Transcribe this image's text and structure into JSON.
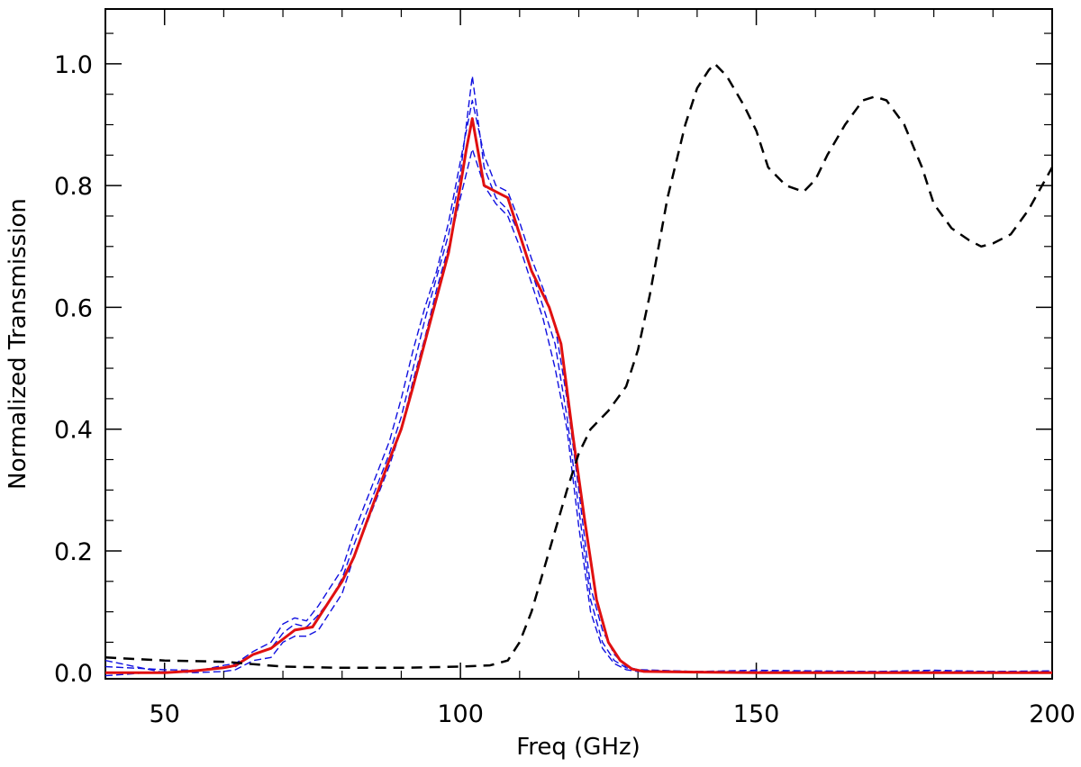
{
  "chart_data": {
    "type": "line",
    "title": "",
    "xlabel": "Freq (GHz)",
    "ylabel": "Normalized Transmission",
    "xlim": [
      40,
      200
    ],
    "ylim": [
      -0.01,
      1.09
    ],
    "xticks": [
      50,
      100,
      150,
      200
    ],
    "xtick_labels": [
      "50",
      "100",
      "150",
      "200"
    ],
    "yticks": [
      0.0,
      0.2,
      0.4,
      0.6,
      0.8,
      1.0
    ],
    "ytick_labels": [
      "0.0",
      "0.2",
      "0.4",
      "0.6",
      "0.8",
      "1.0"
    ],
    "grid": false,
    "legend": "none",
    "series": [
      {
        "color": "#1010e0",
        "style": "dashed",
        "description_role": "individual-detector",
        "x": [
          40,
          50,
          55,
          60,
          62,
          65,
          68,
          70,
          72,
          74,
          76,
          78,
          80,
          82,
          84,
          86,
          88,
          90,
          92,
          94,
          96,
          98,
          100,
          102,
          104,
          106,
          108,
          110,
          112,
          114,
          116,
          118,
          120,
          122,
          124,
          126,
          128,
          130,
          140,
          150,
          160,
          170,
          180,
          190,
          200
        ],
        "y": [
          0.02,
          0.0,
          0.002,
          0.012,
          0.015,
          0.035,
          0.05,
          0.08,
          0.09,
          0.085,
          0.11,
          0.14,
          0.17,
          0.23,
          0.28,
          0.33,
          0.38,
          0.45,
          0.53,
          0.6,
          0.66,
          0.74,
          0.84,
          0.94,
          0.85,
          0.8,
          0.79,
          0.74,
          0.68,
          0.63,
          0.57,
          0.45,
          0.3,
          0.14,
          0.07,
          0.03,
          0.01,
          0.005,
          0.002,
          0.002,
          0.002,
          0.002,
          0.002,
          0.002,
          0.002
        ]
      },
      {
        "color": "#1010e0",
        "style": "dashed",
        "description_role": "individual-detector",
        "x": [
          40,
          50,
          55,
          60,
          62,
          65,
          68,
          70,
          72,
          74,
          76,
          78,
          80,
          82,
          84,
          86,
          88,
          90,
          92,
          94,
          96,
          98,
          100,
          102,
          104,
          106,
          108,
          110,
          112,
          114,
          116,
          118,
          120,
          122,
          124,
          126,
          128,
          130,
          140,
          150,
          160,
          170,
          180,
          190,
          200
        ],
        "y": [
          -0.005,
          0.002,
          0.0,
          0.002,
          0.005,
          0.02,
          0.025,
          0.05,
          0.06,
          0.06,
          0.07,
          0.1,
          0.13,
          0.19,
          0.24,
          0.29,
          0.34,
          0.4,
          0.48,
          0.55,
          0.63,
          0.7,
          0.78,
          0.86,
          0.8,
          0.77,
          0.75,
          0.7,
          0.64,
          0.58,
          0.5,
          0.4,
          0.24,
          0.1,
          0.04,
          0.015,
          0.005,
          0.002,
          0.001,
          0.001,
          0.001,
          0.001,
          0.001,
          0.001,
          0.001
        ]
      },
      {
        "color": "#1010e0",
        "style": "dashed",
        "description_role": "individual-detector",
        "x": [
          40,
          50,
          55,
          60,
          62,
          65,
          68,
          70,
          72,
          74,
          76,
          78,
          80,
          82,
          84,
          86,
          88,
          90,
          92,
          94,
          96,
          98,
          100,
          102,
          104,
          106,
          108,
          110,
          112,
          114,
          116,
          118,
          120,
          122,
          124,
          126,
          128,
          130,
          140,
          150,
          160,
          170,
          180,
          190,
          200
        ],
        "y": [
          0.01,
          0.005,
          0.004,
          0.008,
          0.01,
          0.03,
          0.04,
          0.065,
          0.08,
          0.075,
          0.095,
          0.12,
          0.155,
          0.21,
          0.26,
          0.31,
          0.36,
          0.42,
          0.5,
          0.58,
          0.65,
          0.72,
          0.82,
          0.98,
          0.83,
          0.78,
          0.76,
          0.72,
          0.66,
          0.6,
          0.54,
          0.42,
          0.27,
          0.12,
          0.05,
          0.02,
          0.008,
          0.004,
          0.002,
          0.004,
          0.003,
          0.002,
          0.004,
          0.002,
          0.003
        ]
      },
      {
        "name": "",
        "color": "#e01010",
        "style": "solid",
        "description_role": "average",
        "x": [
          40,
          45,
          50,
          55,
          60,
          62,
          65,
          68,
          70,
          72,
          75,
          78,
          80,
          82,
          85,
          88,
          90,
          92,
          95,
          98,
          100,
          101,
          102,
          104,
          106,
          108,
          110,
          112,
          115,
          117,
          119,
          121,
          123,
          125,
          127,
          129,
          131,
          140,
          150,
          160,
          170,
          180,
          190,
          200
        ],
        "y": [
          0.0,
          0.0,
          0.0,
          0.003,
          0.008,
          0.012,
          0.03,
          0.04,
          0.055,
          0.07,
          0.075,
          0.12,
          0.15,
          0.19,
          0.27,
          0.35,
          0.4,
          0.47,
          0.58,
          0.69,
          0.8,
          0.86,
          0.91,
          0.8,
          0.79,
          0.78,
          0.72,
          0.66,
          0.6,
          0.54,
          0.39,
          0.25,
          0.12,
          0.05,
          0.02,
          0.006,
          0.002,
          0.001,
          0.0,
          0.0,
          0.0,
          0.0,
          0.0,
          0.0
        ]
      },
      {
        "name": "",
        "color": "#000000",
        "style": "dashed",
        "description_role": "reference-band",
        "x": [
          40,
          50,
          60,
          70,
          80,
          90,
          100,
          105,
          108,
          110,
          112,
          115,
          118,
          120,
          122,
          125,
          128,
          130,
          132,
          135,
          138,
          140,
          142,
          143,
          145,
          148,
          150,
          152,
          155,
          158,
          160,
          162,
          165,
          168,
          170,
          172,
          175,
          178,
          180,
          183,
          186,
          188,
          190,
          193,
          196,
          200
        ],
        "y": [
          0.025,
          0.02,
          0.018,
          0.01,
          0.008,
          0.008,
          0.01,
          0.012,
          0.02,
          0.05,
          0.1,
          0.2,
          0.3,
          0.36,
          0.4,
          0.43,
          0.47,
          0.53,
          0.62,
          0.78,
          0.9,
          0.96,
          0.99,
          1.0,
          0.98,
          0.93,
          0.89,
          0.83,
          0.8,
          0.79,
          0.81,
          0.85,
          0.9,
          0.94,
          0.946,
          0.94,
          0.9,
          0.83,
          0.77,
          0.73,
          0.71,
          0.7,
          0.705,
          0.72,
          0.76,
          0.83
        ]
      }
    ]
  }
}
